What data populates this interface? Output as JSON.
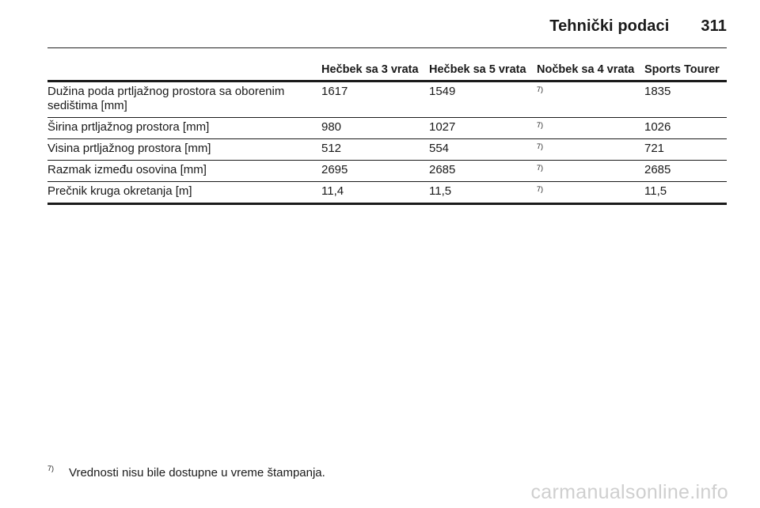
{
  "header": {
    "title": "Tehnički podaci",
    "page_number": "311"
  },
  "table": {
    "columns": [
      "",
      "Hečbek sa 3 vrata",
      "Hečbek sa 5 vrata",
      "Nočbek sa 4 vrata",
      "Sports Tourer"
    ],
    "rows": [
      {
        "label": "Dužina poda prtljažnog prostora sa oborenim sedištima [mm]",
        "values": [
          "1617",
          "1549",
          "7)",
          "1835"
        ]
      },
      {
        "label": "Širina prtljažnog prostora [mm]",
        "values": [
          "980",
          "1027",
          "7)",
          "1026"
        ]
      },
      {
        "label": "Visina prtljažnog prostora [mm]",
        "values": [
          "512",
          "554",
          "7)",
          "721"
        ]
      },
      {
        "label": "Razmak između osovina [mm]",
        "values": [
          "2695",
          "2685",
          "7)",
          "2685"
        ]
      },
      {
        "label": "Prečnik kruga okretanja [m]",
        "values": [
          "11,4",
          "11,5",
          "7)",
          "11,5"
        ]
      }
    ]
  },
  "footnote": {
    "mark": "7)",
    "text": "Vrednosti nisu bile dostupne u vreme štampanja."
  },
  "watermark": "carmanualsonline.info"
}
